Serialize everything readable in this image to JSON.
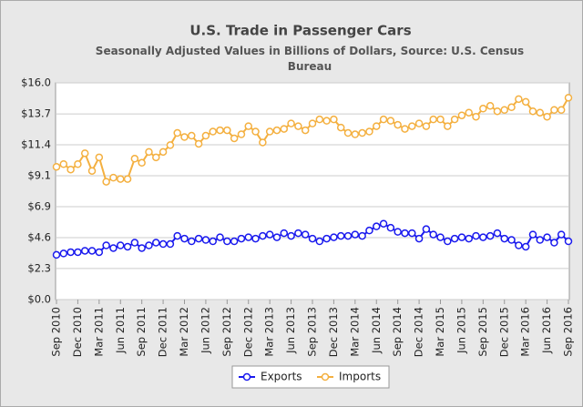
{
  "chart_data": {
    "type": "line",
    "title": "U.S. Trade in Passenger Cars",
    "subtitle": "Seasonally Adjusted Values in Billions of Dollars, Source: U.S. Census Bureau",
    "categories": [
      "Sep 2010",
      null,
      null,
      "Dec 2010",
      null,
      null,
      "Mar 2011",
      null,
      null,
      "Jun 2011",
      null,
      null,
      "Sep 2011",
      null,
      null,
      "Dec 2011",
      null,
      null,
      "Mar 2012",
      null,
      null,
      "Jun 2012",
      null,
      null,
      "Sep 2012",
      null,
      null,
      "Dec 2012",
      null,
      null,
      "Mar 2013",
      null,
      null,
      "Jun 2013",
      null,
      null,
      "Sep 2013",
      null,
      null,
      "Dec 2013",
      null,
      null,
      "Mar 2014",
      null,
      null,
      "Jun 2014",
      null,
      null,
      "Sep 2014",
      null,
      null,
      "Dec 2014",
      null,
      null,
      "Mar 2015",
      null,
      null,
      "Jun 2015",
      null,
      null,
      "Sep 2015",
      null,
      null,
      "Dec 2015",
      null,
      null,
      "Mar 2016",
      null,
      null,
      "Jun 2016",
      null,
      null,
      "Sep 2016"
    ],
    "series": [
      {
        "name": "Exports",
        "color": "#1a1aee",
        "values": [
          3.3,
          3.4,
          3.5,
          3.5,
          3.6,
          3.6,
          3.5,
          4.0,
          3.8,
          4.0,
          3.9,
          4.2,
          3.8,
          4.0,
          4.2,
          4.1,
          4.1,
          4.7,
          4.5,
          4.3,
          4.5,
          4.4,
          4.3,
          4.6,
          4.3,
          4.3,
          4.5,
          4.6,
          4.5,
          4.7,
          4.8,
          4.6,
          4.9,
          4.7,
          4.9,
          4.8,
          4.5,
          4.3,
          4.5,
          4.6,
          4.7,
          4.7,
          4.8,
          4.7,
          5.1,
          5.4,
          5.6,
          5.3,
          5.0,
          4.9,
          4.9,
          4.5,
          5.2,
          4.8,
          4.6,
          4.3,
          4.5,
          4.6,
          4.5,
          4.7,
          4.6,
          4.7,
          4.9,
          4.5,
          4.4,
          4.0,
          3.9,
          4.8,
          4.4,
          4.6,
          4.2,
          4.8,
          4.3
        ]
      },
      {
        "name": "Imports",
        "color": "#f4b040",
        "values": [
          9.8,
          10.0,
          9.6,
          10.0,
          10.8,
          9.5,
          10.5,
          8.7,
          9.0,
          8.9,
          8.9,
          10.4,
          10.1,
          10.9,
          10.5,
          10.9,
          11.4,
          12.3,
          12.0,
          12.1,
          11.5,
          12.1,
          12.4,
          12.5,
          12.5,
          11.9,
          12.2,
          12.8,
          12.4,
          11.6,
          12.4,
          12.5,
          12.6,
          13.0,
          12.8,
          12.5,
          13.0,
          13.3,
          13.2,
          13.3,
          12.7,
          12.3,
          12.2,
          12.3,
          12.4,
          12.8,
          13.3,
          13.2,
          12.9,
          12.6,
          12.8,
          13.0,
          12.8,
          13.3,
          13.3,
          12.8,
          13.3,
          13.6,
          13.8,
          13.5,
          14.1,
          14.3,
          13.9,
          14.0,
          14.2,
          14.8,
          14.6,
          13.9,
          13.8,
          13.5,
          14.0,
          14.0,
          14.9
        ]
      }
    ],
    "ylim": [
      0,
      16
    ],
    "yticks": [
      {
        "value": 0,
        "label": "$0.0"
      },
      {
        "value": 2.29,
        "label": "$2.3"
      },
      {
        "value": 4.57,
        "label": "$4.6"
      },
      {
        "value": 6.86,
        "label": "$6.9"
      },
      {
        "value": 9.14,
        "label": "$9.1"
      },
      {
        "value": 11.43,
        "label": "$11.4"
      },
      {
        "value": 13.71,
        "label": "$13.7"
      },
      {
        "value": 16,
        "label": "$16.0"
      }
    ],
    "grid": true,
    "legend": "bottom"
  }
}
